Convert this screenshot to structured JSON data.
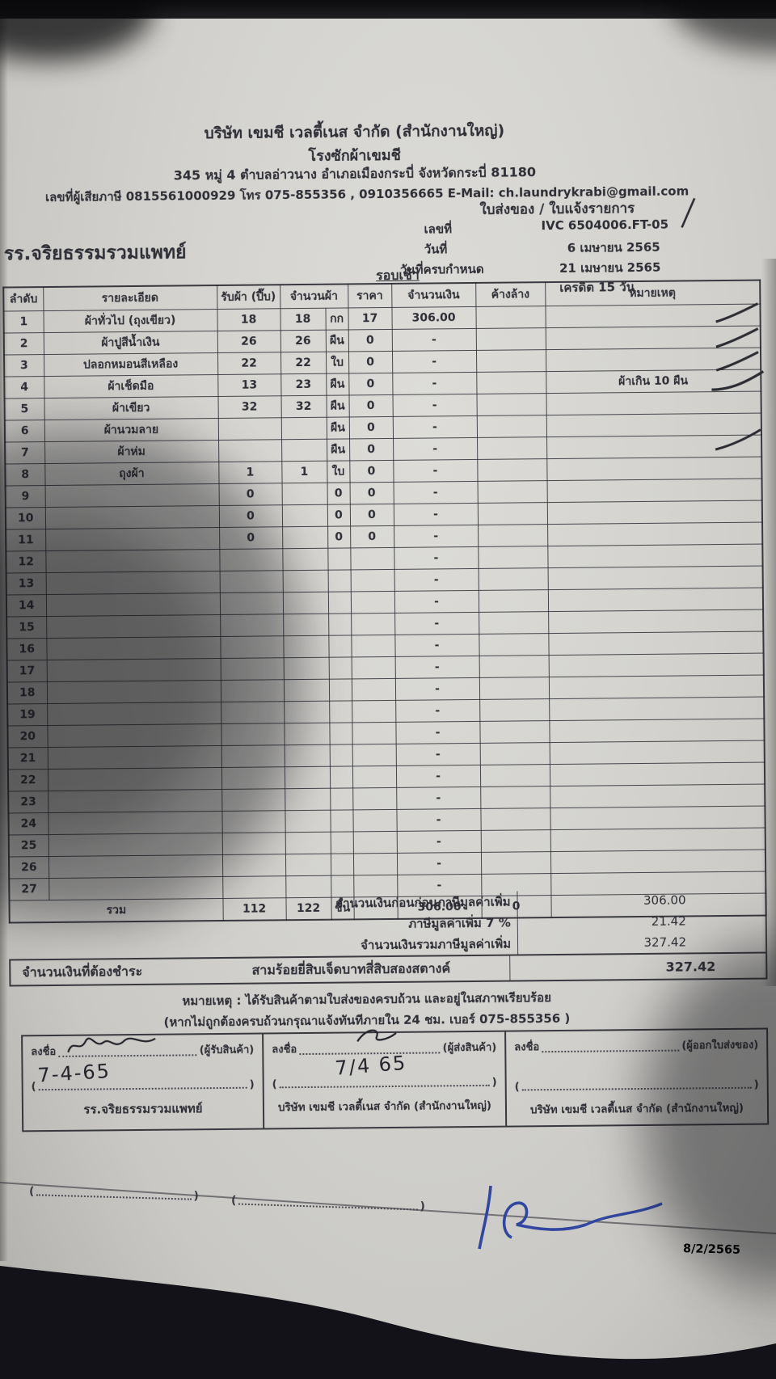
{
  "header": {
    "company_line1": "บริษัท เขมชี เวลตี้เนส จำกัด (สำนักงานใหญ่)",
    "company_line2": "โรงซักผ้าเขมชี",
    "address": "345 หมู่ 4 ตำบลอ่าวนาง อำเภอเมืองกระบี่ จังหวัดกระบี่ 81180",
    "tax_line": "เลขที่ผู้เสียภาษี 0815561000929 โทร 075-855356 , 0910356665 E-Mail: ch.laundrykrabi@gmail.com",
    "doc_type": "ใบส่งของ / ใบแจ้งรายการ",
    "doc_no_label": "เลขที่",
    "doc_no": "IVC 6504006.FT-05",
    "date_label": "วันที่",
    "date": "6 เมษายน 2565",
    "due_label": "วันที่ครบกำหนด",
    "due_date": "21 เมษายน 2565",
    "credit": "เครดิต 15 วัน",
    "customer": "รร.จริยธรรมรวมแพทย์",
    "round": "รอบเช้า"
  },
  "table": {
    "columns": {
      "no": "ลำดับ",
      "desc": "รายละเอียด",
      "received": "รับผ้า (ปี๊บ)",
      "qty": "จำนวนผ้า",
      "price": "ราคา",
      "amount": "จำนวนเงิน",
      "outstanding": "ค้างล้าง",
      "remark": "หมายเหตุ"
    },
    "rows": [
      [
        "1",
        "ผ้าทั่วไป (ถุงเขียว)",
        "18",
        "18",
        "กก",
        "17",
        "306.00",
        "",
        ""
      ],
      [
        "2",
        "ผ้าปูสีน้ำเงิน",
        "26",
        "26",
        "ผืน",
        "0",
        "-",
        "",
        ""
      ],
      [
        "3",
        "ปลอกหมอนสีเหลือง",
        "22",
        "22",
        "ใบ",
        "0",
        "-",
        "",
        ""
      ],
      [
        "4",
        "ผ้าเช็ดมือ",
        "13",
        "23",
        "ผืน",
        "0",
        "-",
        "",
        "ผ้าเกิน 10 ผืน"
      ],
      [
        "5",
        "ผ้าเขียว",
        "32",
        "32",
        "ผืน",
        "0",
        "-",
        "",
        ""
      ],
      [
        "6",
        "ผ้านวมลาย",
        "",
        "",
        "ผืน",
        "0",
        "-",
        "",
        ""
      ],
      [
        "7",
        "ผ้าห่ม",
        "",
        "",
        "ผืน",
        "0",
        "-",
        "",
        ""
      ],
      [
        "8",
        "ถุงผ้า",
        "1",
        "1",
        "ใบ",
        "0",
        "-",
        "",
        ""
      ],
      [
        "9",
        "",
        "0",
        "",
        "0",
        "0",
        "-",
        "",
        ""
      ],
      [
        "10",
        "",
        "0",
        "",
        "0",
        "0",
        "-",
        "",
        ""
      ],
      [
        "11",
        "",
        "0",
        "",
        "0",
        "0",
        "-",
        "",
        ""
      ],
      [
        "12",
        "",
        "",
        "",
        "",
        "",
        "-",
        "",
        ""
      ],
      [
        "13",
        "",
        "",
        "",
        "",
        "",
        "-",
        "",
        ""
      ],
      [
        "14",
        "",
        "",
        "",
        "",
        "",
        "-",
        "",
        ""
      ],
      [
        "15",
        "",
        "",
        "",
        "",
        "",
        "-",
        "",
        ""
      ],
      [
        "16",
        "",
        "",
        "",
        "",
        "",
        "-",
        "",
        ""
      ],
      [
        "17",
        "",
        "",
        "",
        "",
        "",
        "-",
        "",
        ""
      ],
      [
        "18",
        "",
        "",
        "",
        "",
        "",
        "-",
        "",
        ""
      ],
      [
        "19",
        "",
        "",
        "",
        "",
        "",
        "-",
        "",
        ""
      ],
      [
        "20",
        "",
        "",
        "",
        "",
        "",
        "-",
        "",
        ""
      ],
      [
        "21",
        "",
        "",
        "",
        "",
        "",
        "-",
        "",
        ""
      ],
      [
        "22",
        "",
        "",
        "",
        "",
        "",
        "-",
        "",
        ""
      ],
      [
        "23",
        "",
        "",
        "",
        "",
        "",
        "-",
        "",
        ""
      ],
      [
        "24",
        "",
        "",
        "",
        "",
        "",
        "-",
        "",
        ""
      ],
      [
        "25",
        "",
        "",
        "",
        "",
        "",
        "-",
        "",
        ""
      ],
      [
        "26",
        "",
        "",
        "",
        "",
        "",
        "-",
        "",
        ""
      ],
      [
        "27",
        "",
        "",
        "",
        "",
        "",
        "-",
        "",
        ""
      ]
    ],
    "total": {
      "label": "รวม",
      "received": "112",
      "qty": "122",
      "unit": "ชิ้น",
      "amount": "306.00",
      "outstanding": "0"
    }
  },
  "summary": {
    "subtotal_label": "จำนวนเงินก่อนก่อนภาษีมูลค่าเพิ่ม",
    "subtotal": "306.00",
    "vat_label": "ภาษีมูลค่าเพิ่ม 7 %",
    "vat": "21.42",
    "grand_label": "จำนวนเงินรวมภาษีมูลค่าเพิ่ม",
    "grand": "327.42",
    "due_label": "จำนวนเงินที่ต้องชำระ",
    "amount_text": "สามร้อยยี่สิบเจ็ดบาทสี่สิบสองสตางค์",
    "amount_due": "327.42"
  },
  "notes": {
    "line1": "หมายเหตุ : ได้รับสินค้าตามใบส่งของครบถ้วน และอยู่ในสภาพเรียบร้อย",
    "line2": "(หากไม่ถูกต้องครบถ้วนกรุณาแจ้งทันทีภายใน 24 ชม. เบอร์ 075-855356 )"
  },
  "signatures": [
    {
      "sign_label": "ลงชื่อ",
      "role": "(ผู้รับสินค้า)",
      "handwriting": "7-4-65",
      "paren": "(",
      "paren_close": ")",
      "org": "รร.จริยธรรมรวมแพทย์"
    },
    {
      "sign_label": "ลงชื่อ",
      "role": "(ผู้ส่งสินค้า)",
      "handwriting": "7/4 65",
      "paren": "(",
      "paren_close": ")",
      "org": "บริษัท เขมชี เวลตี้เนส จำกัด (สำนักงานใหญ่)"
    },
    {
      "sign_label": "ลงชื่อ",
      "role": "(ผู้ออกใบส่งของ)",
      "handwriting": "",
      "paren": "(",
      "paren_close": ")",
      "org": "บริษัท เขมชี เวลตี้เนส จำกัด (สำนักงานใหญ่)"
    }
  ],
  "footer": {
    "paren_open": "(",
    "paren_close": ")",
    "handwritten_blue": "18",
    "date_stamp": "8/2/2565"
  }
}
